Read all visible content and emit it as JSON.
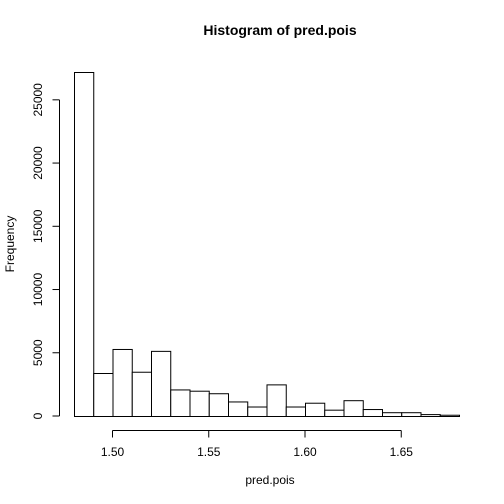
{
  "chart_data": {
    "type": "bar",
    "title": "Histogram of pred.pois",
    "xlabel": "pred.pois",
    "ylabel": "Frequency",
    "bin_width": 0.01,
    "bin_start": [
      1.48,
      1.49,
      1.5,
      1.51,
      1.52,
      1.53,
      1.54,
      1.55,
      1.56,
      1.57,
      1.58,
      1.59,
      1.6,
      1.61,
      1.62,
      1.63,
      1.64,
      1.65,
      1.66,
      1.67
    ],
    "values": [
      27200,
      3400,
      5300,
      3500,
      5150,
      2100,
      2000,
      1800,
      1150,
      750,
      2500,
      750,
      1050,
      500,
      1250,
      550,
      300,
      300,
      150,
      100
    ],
    "xlim": [
      1.48,
      1.68
    ],
    "ylim": [
      0,
      27200
    ],
    "x_ticks": [
      "1.50",
      "1.55",
      "1.60",
      "1.65"
    ],
    "y_ticks": [
      "0",
      "5000",
      "10000",
      "15000",
      "20000",
      "25000"
    ]
  }
}
